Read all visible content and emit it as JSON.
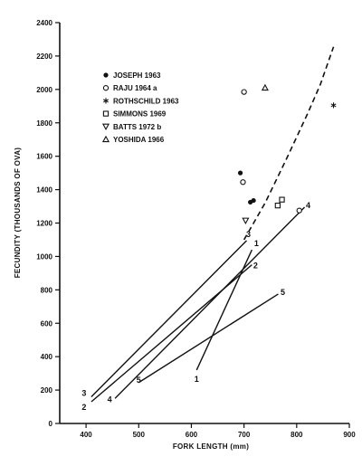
{
  "chart_data": {
    "type": "scatter",
    "title": "",
    "xlabel": "FORK LENGTH (mm)",
    "ylabel": "FECUNDITY (THOUSANDS OF OVA)",
    "xlim": [
      350,
      900
    ],
    "ylim": [
      0,
      2400
    ],
    "x_ticks": [
      400,
      500,
      600,
      700,
      800,
      900
    ],
    "y_ticks": [
      0,
      200,
      400,
      600,
      800,
      1000,
      1200,
      1400,
      1600,
      1800,
      2000,
      2200,
      2400
    ],
    "x_tick_labels": [
      "400",
      "500",
      "600",
      "700",
      "800",
      "900"
    ],
    "y_tick_labels": [
      "0",
      "200",
      "400",
      "600",
      "800",
      "1000",
      "1200",
      "1400",
      "1600",
      "1800",
      "2000",
      "2200",
      "2400"
    ],
    "grid": false,
    "legend_position": "top-left",
    "series": [
      {
        "name": "JOSEPH 1963",
        "marker": "filled-circle",
        "points": [
          [
            693,
            1500
          ],
          [
            718,
            1335
          ],
          [
            712,
            1325
          ]
        ]
      },
      {
        "name": "RAJU 1964 a",
        "marker": "open-circle",
        "points": [
          [
            700,
            1985
          ],
          [
            698,
            1445
          ],
          [
            805,
            1275
          ]
        ]
      },
      {
        "name": "ROTHSCHILD 1963",
        "marker": "asterisk",
        "points": [
          [
            870,
            1905
          ]
        ]
      },
      {
        "name": "SIMMONS 1969",
        "marker": "open-square",
        "points": [
          [
            772,
            1340
          ],
          [
            764,
            1305
          ]
        ]
      },
      {
        "name": "BATTS 1972 b",
        "marker": "open-triangle-down",
        "points": [
          [
            703,
            1215
          ]
        ]
      },
      {
        "name": "YOSHIDA 1966",
        "marker": "open-triangle-up",
        "points": [
          [
            740,
            2010
          ]
        ]
      }
    ],
    "regression_lines": [
      {
        "label": "1",
        "points": [
          [
            610,
            320
          ],
          [
            715,
            1040
          ]
        ],
        "label_at": [
          [
            610,
            320
          ],
          [
            715,
            1040
          ]
        ]
      },
      {
        "label": "2",
        "points": [
          [
            410,
            130
          ],
          [
            715,
            950
          ]
        ],
        "label_at": [
          [
            410,
            130
          ],
          [
            715,
            950
          ]
        ]
      },
      {
        "label": "3",
        "points": [
          [
            410,
            160
          ],
          [
            705,
            1095
          ]
        ],
        "label_at": [
          [
            410,
            160
          ],
          [
            705,
            1095
          ]
        ]
      },
      {
        "label": "4",
        "points": [
          [
            455,
            150
          ],
          [
            815,
            1295
          ]
        ],
        "label_at": [
          [
            455,
            150
          ],
          [
            815,
            1295
          ]
        ]
      },
      {
        "label": "5",
        "points": [
          [
            500,
            245
          ],
          [
            765,
            775
          ]
        ],
        "label_at": [
          [
            500,
            245
          ],
          [
            765,
            775
          ]
        ]
      }
    ],
    "dashed_curve": [
      [
        700,
        1100
      ],
      [
        740,
        1320
      ],
      [
        780,
        1580
      ],
      [
        820,
        1850
      ],
      [
        845,
        2030
      ],
      [
        870,
        2255
      ]
    ]
  }
}
